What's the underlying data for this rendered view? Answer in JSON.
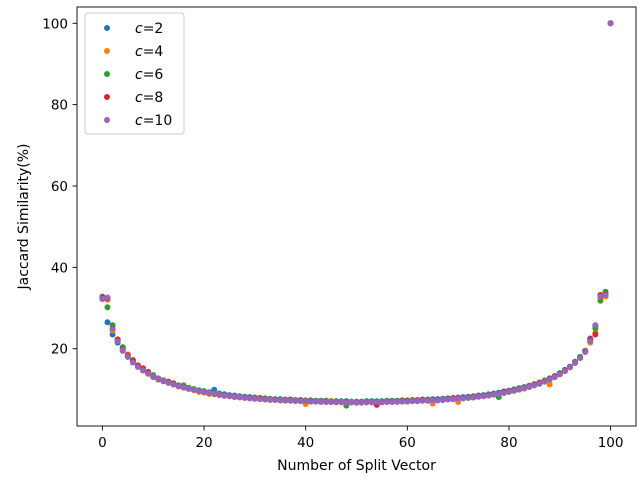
{
  "chart_data": {
    "type": "scatter",
    "title": "",
    "xlabel": "Number of Split Vector",
    "ylabel": "Jaccard Similarity(%)",
    "xlim": [
      -5,
      105
    ],
    "ylim": [
      1,
      104
    ],
    "xticks": [
      0,
      20,
      40,
      60,
      80,
      100
    ],
    "yticks": [
      20,
      40,
      60,
      80,
      100
    ],
    "grid": false,
    "legend_position": "upper-left",
    "x": [
      0,
      1,
      2,
      3,
      4,
      5,
      6,
      7,
      8,
      9,
      10,
      11,
      12,
      13,
      14,
      15,
      16,
      17,
      18,
      19,
      20,
      21,
      22,
      23,
      24,
      25,
      26,
      27,
      28,
      29,
      30,
      31,
      32,
      33,
      34,
      35,
      36,
      37,
      38,
      39,
      40,
      41,
      42,
      43,
      44,
      45,
      46,
      47,
      48,
      49,
      50,
      51,
      52,
      53,
      54,
      55,
      56,
      57,
      58,
      59,
      60,
      61,
      62,
      63,
      64,
      65,
      66,
      67,
      68,
      69,
      70,
      71,
      72,
      73,
      74,
      75,
      76,
      77,
      78,
      79,
      80,
      81,
      82,
      83,
      84,
      85,
      86,
      87,
      88,
      89,
      90,
      91,
      92,
      93,
      94,
      95,
      96,
      97,
      98,
      99,
      100
    ],
    "series": [
      {
        "name": "c=2",
        "label_var": "c",
        "label_val": "=2",
        "color": "#1f77b4",
        "values": [
          32.5,
          26.5,
          23.5,
          21.5,
          19.5,
          18.0,
          16.8,
          15.6,
          14.8,
          14.0,
          13.3,
          12.7,
          12.2,
          11.7,
          11.3,
          10.9,
          10.6,
          10.3,
          10.0,
          9.7,
          9.5,
          9.3,
          9.9,
          9.0,
          8.8,
          8.6,
          8.5,
          8.3,
          8.2,
          8.1,
          8.0,
          7.9,
          7.8,
          7.7,
          7.6,
          7.6,
          7.5,
          7.5,
          7.4,
          7.4,
          7.3,
          7.3,
          7.2,
          7.2,
          7.2,
          7.1,
          7.1,
          7.1,
          7.1,
          7.0,
          7.0,
          7.0,
          7.1,
          7.1,
          7.1,
          7.1,
          7.2,
          7.2,
          7.2,
          7.3,
          7.3,
          7.4,
          7.4,
          7.5,
          7.5,
          7.6,
          7.6,
          7.7,
          7.8,
          7.9,
          8.0,
          8.1,
          8.2,
          8.3,
          8.5,
          8.6,
          8.8,
          9.0,
          9.2,
          9.5,
          9.7,
          10.0,
          10.3,
          10.6,
          10.9,
          11.3,
          11.7,
          12.2,
          12.7,
          13.3,
          14.0,
          14.8,
          15.6,
          16.8,
          18.0,
          19.5,
          22.5,
          25.5,
          33.0,
          33.0,
          100
        ]
      },
      {
        "name": "c=4",
        "label_var": "c",
        "label_val": "=4",
        "color": "#ff7f0e",
        "values": [
          32.2,
          32.0,
          24.5,
          22.0,
          20.2,
          18.6,
          17.0,
          15.8,
          14.6,
          13.8,
          13.0,
          12.4,
          12.3,
          11.6,
          11.2,
          10.7,
          10.4,
          10.1,
          9.8,
          9.4,
          9.2,
          8.9,
          8.8,
          8.6,
          8.4,
          8.3,
          8.1,
          8.0,
          7.9,
          7.8,
          7.7,
          7.6,
          7.5,
          7.4,
          7.4,
          7.3,
          7.2,
          7.2,
          7.1,
          7.1,
          6.4,
          7.0,
          7.0,
          6.9,
          6.9,
          7.2,
          6.8,
          6.8,
          6.8,
          6.8,
          6.7,
          6.7,
          6.8,
          6.8,
          6.8,
          6.8,
          6.9,
          6.9,
          6.9,
          7.0,
          7.0,
          7.1,
          7.1,
          7.2,
          7.2,
          6.5,
          7.3,
          7.4,
          7.5,
          7.6,
          6.9,
          7.8,
          7.9,
          8.0,
          8.2,
          8.3,
          8.5,
          8.7,
          8.9,
          9.1,
          9.4,
          9.6,
          9.9,
          10.2,
          10.6,
          11.0,
          11.4,
          11.9,
          11.2,
          13.0,
          13.7,
          14.5,
          15.4,
          16.5,
          17.8,
          19.4,
          21.5,
          24.0,
          32.5,
          32.8,
          100
        ]
      },
      {
        "name": "c=6",
        "label_var": "c",
        "label_val": "=6",
        "color": "#2ca02c",
        "values": [
          32.8,
          30.2,
          25.8,
          22.2,
          20.4,
          18.2,
          16.9,
          15.7,
          14.9,
          14.1,
          13.5,
          12.5,
          12.0,
          11.8,
          11.5,
          11.0,
          11.0,
          10.4,
          10.1,
          9.8,
          9.6,
          9.2,
          9.0,
          8.8,
          8.6,
          8.5,
          8.4,
          8.2,
          8.1,
          8.0,
          7.9,
          7.8,
          7.7,
          7.6,
          7.5,
          7.5,
          7.4,
          7.4,
          7.3,
          7.3,
          7.2,
          7.2,
          7.1,
          7.1,
          7.1,
          7.0,
          7.0,
          7.0,
          6.0,
          6.9,
          6.9,
          6.9,
          7.0,
          7.0,
          7.0,
          7.0,
          7.1,
          7.1,
          7.1,
          7.2,
          7.2,
          7.3,
          7.3,
          7.4,
          7.4,
          7.5,
          7.5,
          7.6,
          7.7,
          7.8,
          7.9,
          8.0,
          8.1,
          8.2,
          8.4,
          8.5,
          8.7,
          8.9,
          8.1,
          9.4,
          9.6,
          9.9,
          10.2,
          10.5,
          10.8,
          11.2,
          11.6,
          12.1,
          12.6,
          13.2,
          13.9,
          14.7,
          15.5,
          16.7,
          17.9,
          19.4,
          22.0,
          25.0,
          31.8,
          34.0,
          100
        ]
      },
      {
        "name": "c=8",
        "label_var": "c",
        "label_val": "=8",
        "color": "#d62728",
        "values": [
          32.6,
          32.4,
          25.0,
          22.3,
          19.8,
          18.4,
          17.2,
          15.9,
          15.2,
          14.3,
          13.1,
          12.6,
          12.1,
          11.9,
          11.4,
          10.8,
          10.5,
          10.2,
          9.9,
          9.6,
          9.4,
          9.1,
          8.9,
          8.7,
          8.5,
          8.4,
          8.2,
          8.1,
          8.0,
          7.9,
          7.8,
          7.7,
          7.6,
          7.5,
          7.5,
          7.4,
          7.3,
          7.3,
          7.2,
          7.2,
          7.1,
          7.1,
          7.0,
          7.0,
          7.0,
          6.9,
          6.9,
          6.9,
          6.9,
          6.8,
          6.8,
          6.8,
          6.9,
          6.9,
          6.2,
          6.9,
          7.0,
          7.0,
          7.0,
          7.1,
          7.1,
          7.2,
          7.2,
          7.3,
          7.3,
          7.4,
          7.4,
          7.5,
          7.6,
          7.7,
          7.8,
          7.9,
          8.0,
          8.1,
          8.3,
          8.4,
          8.6,
          8.8,
          9.0,
          9.3,
          9.5,
          9.8,
          10.1,
          10.4,
          10.7,
          11.1,
          11.5,
          12.0,
          12.5,
          13.1,
          13.8,
          14.6,
          15.5,
          16.6,
          17.8,
          19.3,
          22.3,
          23.5,
          33.2,
          33.4,
          100
        ]
      },
      {
        "name": "c=10",
        "label_var": "c",
        "label_val": "=10",
        "color": "#9467bd",
        "values": [
          32.3,
          32.6,
          24.8,
          21.8,
          19.6,
          18.1,
          16.6,
          15.5,
          14.7,
          13.9,
          13.2,
          12.6,
          12.1,
          11.6,
          11.2,
          10.8,
          10.5,
          10.2,
          9.9,
          9.6,
          9.4,
          9.1,
          8.9,
          8.7,
          8.5,
          8.3,
          8.2,
          8.1,
          7.9,
          7.8,
          7.7,
          7.6,
          7.5,
          7.5,
          7.4,
          7.3,
          7.3,
          7.2,
          7.2,
          7.1,
          7.1,
          7.0,
          7.0,
          7.0,
          6.9,
          6.9,
          6.9,
          6.9,
          6.8,
          6.8,
          6.8,
          6.8,
          6.8,
          6.8,
          6.9,
          6.9,
          6.9,
          6.9,
          7.0,
          7.0,
          7.0,
          7.1,
          7.1,
          7.2,
          7.2,
          7.3,
          7.3,
          7.4,
          7.5,
          7.6,
          7.7,
          7.8,
          7.9,
          8.0,
          8.2,
          8.3,
          8.5,
          8.7,
          8.9,
          9.1,
          9.4,
          9.7,
          10.0,
          10.3,
          10.6,
          11.0,
          11.4,
          11.9,
          12.4,
          13.0,
          13.7,
          14.5,
          15.4,
          16.5,
          17.7,
          19.2,
          21.8,
          25.8,
          32.8,
          33.2,
          100
        ]
      }
    ]
  }
}
